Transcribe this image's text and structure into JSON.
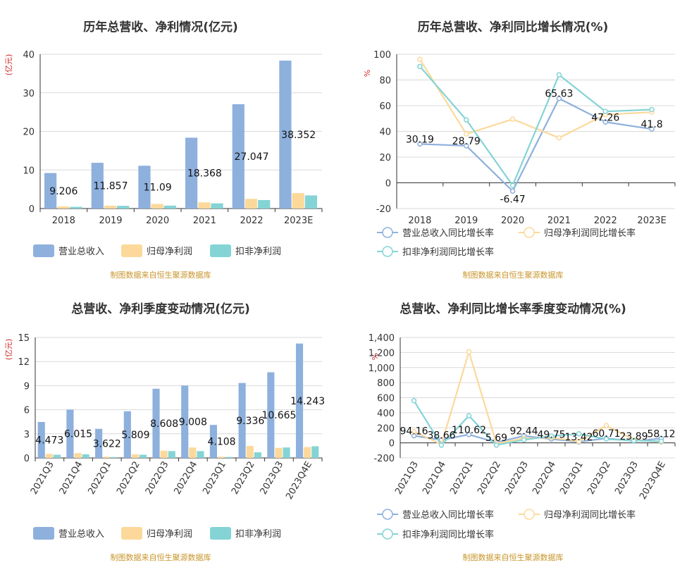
{
  "chart_data": [
    {
      "type": "bar",
      "title": "历年总营收、净利情况(亿元)",
      "ylabel": "(亿元)",
      "categories": [
        "2018",
        "2019",
        "2020",
        "2021",
        "2022",
        "2023E"
      ],
      "ylim": [
        0,
        40
      ],
      "yticks": [
        "0",
        "10",
        "20",
        "30",
        "40"
      ],
      "series": [
        {
          "name": "营业总收入",
          "color": "#8eb0dd",
          "values": [
            9.206,
            11.857,
            11.09,
            18.368,
            27.047,
            38.352
          ],
          "labels": [
            "9.206",
            "11.857",
            "11.09",
            "18.368",
            "27.047",
            "38.352"
          ]
        },
        {
          "name": "归母净利润",
          "color": "#fcd99b",
          "values": [
            0.55,
            0.75,
            1.2,
            1.6,
            2.5,
            4.0
          ]
        },
        {
          "name": "扣非净利润",
          "color": "#84d4d6",
          "values": [
            0.45,
            0.7,
            0.75,
            1.35,
            2.2,
            3.4
          ]
        }
      ],
      "grid": true,
      "legend_position": "bottom",
      "source": "制图数据来自恒生聚源数据库"
    },
    {
      "type": "line",
      "title": "历年总营收、净利同比增长情况(%)",
      "ylabel": "%",
      "categories": [
        "2018",
        "2019",
        "2020",
        "2021",
        "2022",
        "2023E"
      ],
      "ylim": [
        -20,
        100
      ],
      "yticks": [
        "-20",
        "0",
        "20",
        "40",
        "60",
        "80",
        "100"
      ],
      "series": [
        {
          "name": "营业总收入同比增长率",
          "color": "#8eb0dd",
          "values": [
            30.19,
            28.79,
            -6.47,
            65.63,
            47.26,
            41.8
          ],
          "labels": [
            "30.19",
            "28.79",
            "-6.47",
            "65.63",
            "47.26",
            "41.8"
          ]
        },
        {
          "name": "归母净利润同比增长率",
          "color": "#fcd99b",
          "values": [
            96,
            38,
            49.5,
            35,
            53,
            55
          ]
        },
        {
          "name": "扣非净利润同比增长率",
          "color": "#84d4d6",
          "values": [
            90.5,
            49,
            -2,
            84,
            55.5,
            57
          ]
        }
      ],
      "grid": true,
      "legend_position": "bottom",
      "source": "制图数据来自恒生聚源数据库"
    },
    {
      "type": "bar",
      "title": "总营收、净利季度变动情况(亿元)",
      "ylabel": "(亿元)",
      "categories": [
        "2021Q3",
        "2021Q4",
        "2022Q1",
        "2022Q2",
        "2022Q3",
        "2022Q4",
        "2023Q1",
        "2023Q2",
        "2023Q3",
        "2023Q4E"
      ],
      "ylim": [
        0,
        15
      ],
      "yticks": [
        "0",
        "3",
        "6",
        "9",
        "12",
        "15"
      ],
      "series": [
        {
          "name": "营业总收入",
          "color": "#8eb0dd",
          "values": [
            4.473,
            6.015,
            3.622,
            5.809,
            8.608,
            9.008,
            4.108,
            9.336,
            10.665,
            14.243
          ],
          "labels": [
            "4.473",
            "6.015",
            "3.622",
            "5.809",
            "8.608",
            "9.008",
            "4.108",
            "9.336",
            "10.665",
            "14.243"
          ]
        },
        {
          "name": "归母净利润",
          "color": "#fcd99b",
          "values": [
            0.5,
            0.6,
            0.15,
            0.45,
            0.9,
            1.3,
            0.15,
            1.5,
            1.25,
            1.35
          ]
        },
        {
          "name": "扣非净利润",
          "color": "#84d4d6",
          "values": [
            0.4,
            0.45,
            0.1,
            0.4,
            0.85,
            0.85,
            0.12,
            0.7,
            1.3,
            1.45
          ]
        }
      ],
      "grid": true,
      "legend_position": "bottom",
      "source": "制图数据来自恒生聚源数据库"
    },
    {
      "type": "line",
      "title": "总营收、净利同比增长率季度变动情况(%)",
      "ylabel": "%",
      "categories": [
        "2021Q3",
        "2021Q4",
        "2022Q1",
        "2022Q2",
        "2022Q3",
        "2022Q4",
        "2023Q1",
        "2023Q2",
        "2023Q3",
        "2023Q4E"
      ],
      "ylim": [
        -200,
        1400
      ],
      "yticks": [
        "-200",
        "0",
        "200",
        "400",
        "600",
        "800",
        "1,000",
        "1,200",
        "1,400"
      ],
      "series": [
        {
          "name": "营业总收入同比增长率",
          "color": "#8eb0dd",
          "values": [
            94.16,
            38.66,
            110.62,
            5.69,
            92.44,
            49.75,
            13.42,
            60.71,
            23.89,
            58.12
          ],
          "labels": [
            "94.16",
            "38.66",
            "110.62",
            "5.69",
            "92.44",
            "49.75",
            "13.42",
            "60.71",
            "23.89",
            "58.12"
          ]
        },
        {
          "name": "归母净利润同比增长率",
          "color": "#fcd99b",
          "values": [
            150,
            -20,
            1210,
            -10,
            60,
            70,
            20,
            230,
            40,
            10
          ]
        },
        {
          "name": "扣非净利润同比增长率",
          "color": "#84d4d6",
          "values": [
            560,
            -30,
            360,
            -30,
            40,
            90,
            120,
            50,
            30,
            20
          ]
        }
      ],
      "grid": true,
      "legend_position": "bottom",
      "source": "制图数据来自恒生聚源数据库"
    }
  ]
}
